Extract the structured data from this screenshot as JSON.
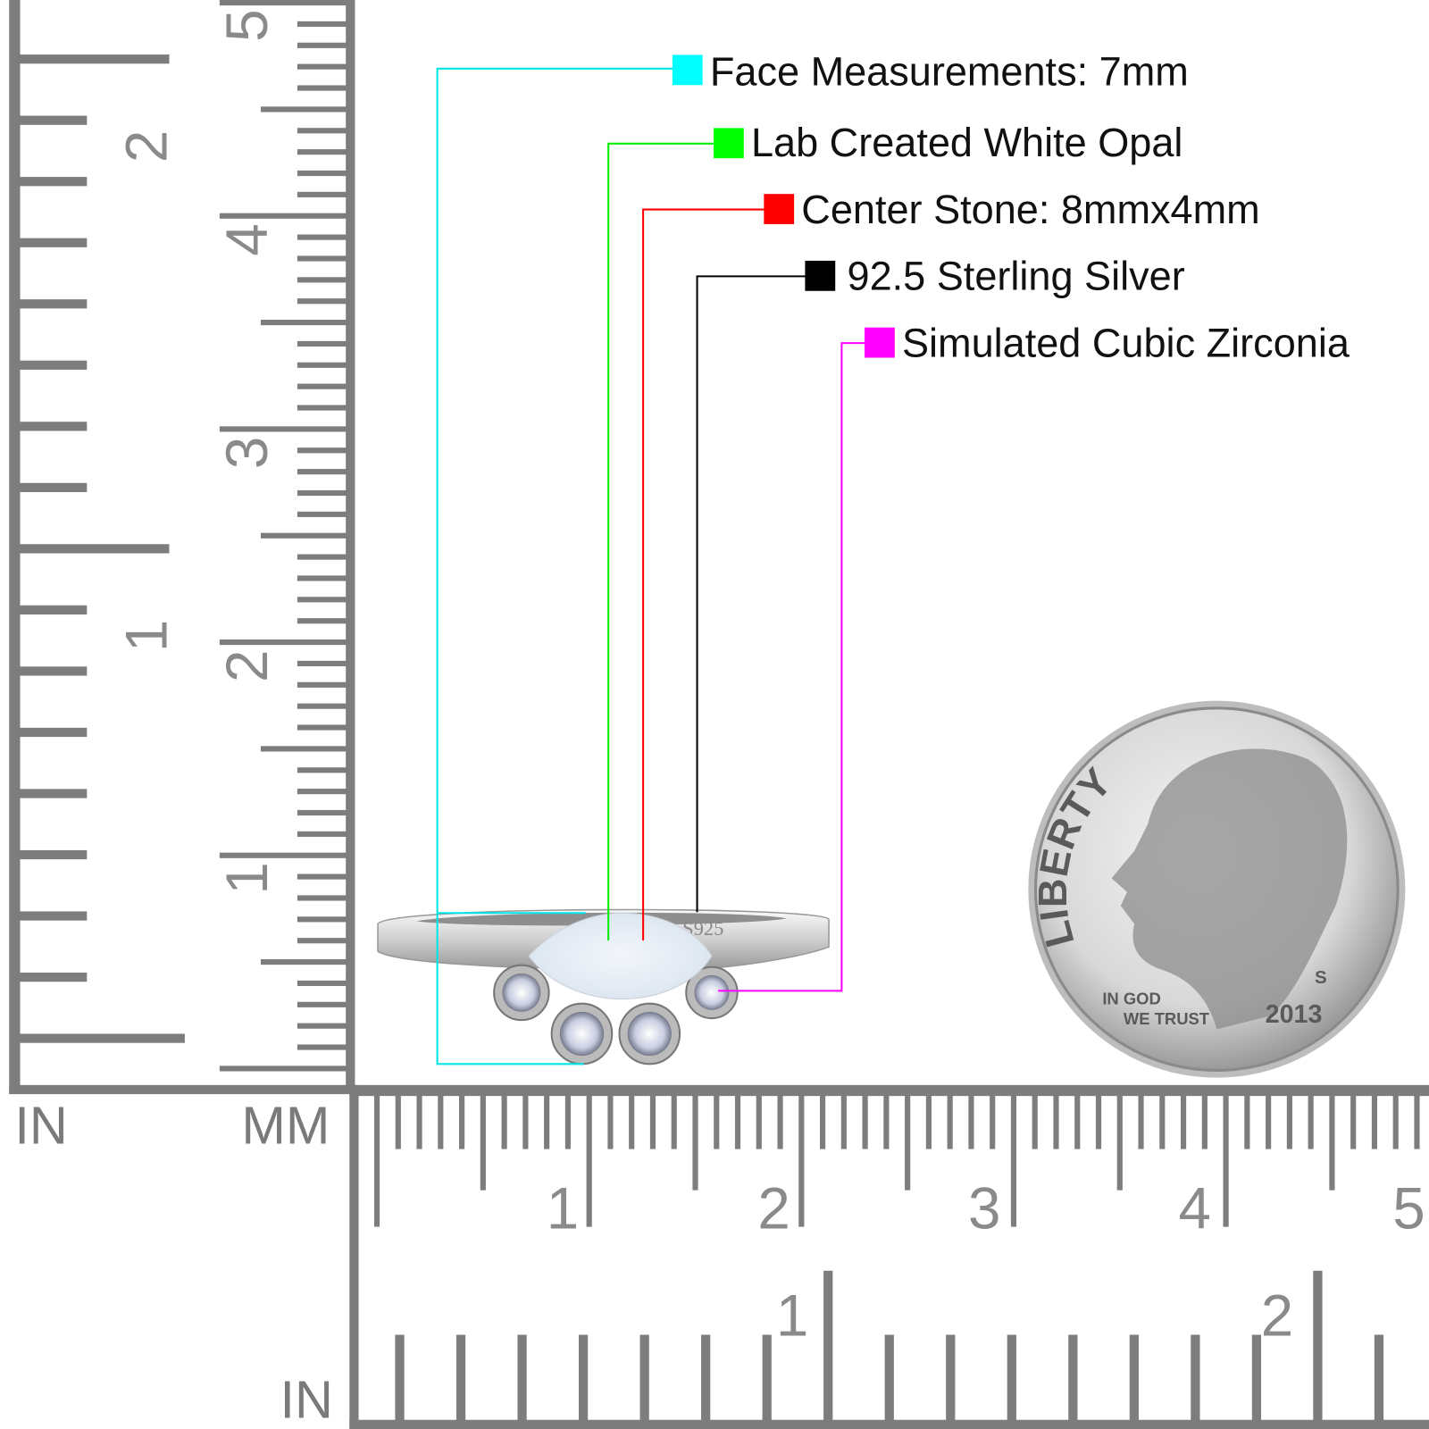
{
  "callouts": [
    {
      "label": "Face Measurements: 7mm",
      "color": "#00ffff"
    },
    {
      "label": "Lab Created White Opal",
      "color": "#00ff00"
    },
    {
      "label": "Center Stone: 8mmx4mm",
      "color": "#ff0000"
    },
    {
      "label": "92.5 Sterling Silver",
      "color": "#000000"
    },
    {
      "label": "Simulated Cubic Zirconia",
      "color": "#ff00ff"
    }
  ],
  "rulers": {
    "left_unit": "IN",
    "mm_unit": "MM",
    "bottom_unit": "IN",
    "left_inch_numbers": [
      "2",
      "1"
    ],
    "left_cm_numbers": [
      "5",
      "4",
      "3",
      "2",
      "1"
    ],
    "bottom_cm_numbers": [
      "1",
      "2",
      "3",
      "4",
      "5"
    ],
    "bottom_inch_numbers": [
      "1",
      "2"
    ]
  },
  "ring": {
    "stamp": "S925"
  },
  "coin": {
    "liberty": "LIBERTY",
    "motto_1": "IN GOD",
    "motto_2": "WE TRUST",
    "year": "2013",
    "mint": "S"
  }
}
